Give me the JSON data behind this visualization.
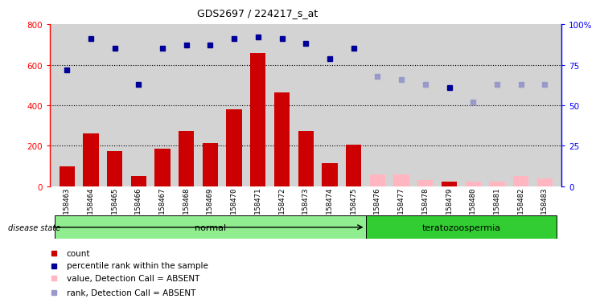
{
  "title": "GDS2697 / 224217_s_at",
  "samples": [
    "GSM158463",
    "GSM158464",
    "GSM158465",
    "GSM158466",
    "GSM158467",
    "GSM158468",
    "GSM158469",
    "GSM158470",
    "GSM158471",
    "GSM158472",
    "GSM158473",
    "GSM158474",
    "GSM158475",
    "GSM158476",
    "GSM158477",
    "GSM158478",
    "GSM158479",
    "GSM158480",
    "GSM158481",
    "GSM158482",
    "GSM158483"
  ],
  "count_values": [
    100,
    260,
    175,
    50,
    185,
    275,
    215,
    380,
    660,
    465,
    275,
    115,
    205,
    null,
    null,
    null,
    25,
    null,
    null,
    null,
    null
  ],
  "count_absent": [
    null,
    null,
    null,
    null,
    null,
    null,
    null,
    null,
    null,
    null,
    null,
    null,
    null,
    60,
    60,
    30,
    null,
    25,
    25,
    50,
    40
  ],
  "rank_values_pct": [
    72,
    91,
    85,
    63,
    85,
    87,
    87,
    91,
    92,
    91,
    88,
    79,
    85,
    null,
    null,
    null,
    61,
    null,
    null,
    null,
    null
  ],
  "rank_absent_pct": [
    null,
    null,
    null,
    null,
    null,
    null,
    null,
    null,
    null,
    null,
    null,
    null,
    null,
    68,
    66,
    63,
    null,
    52,
    63,
    63,
    63
  ],
  "groups": [
    {
      "label": "normal",
      "start": 0,
      "end": 13,
      "color": "#90EE90"
    },
    {
      "label": "teratozoospermia",
      "start": 13,
      "end": 21,
      "color": "#32CD32"
    }
  ],
  "disease_state_label": "disease state",
  "bar_color_red": "#CC0000",
  "bar_color_pink": "#FFB6C1",
  "dot_color_blue": "#000099",
  "dot_color_light_blue": "#9999CC",
  "ylim_left": [
    0,
    800
  ],
  "ylim_right": [
    0,
    100
  ],
  "yticks_left": [
    0,
    200,
    400,
    600,
    800
  ],
  "yticks_right": [
    0,
    25,
    50,
    75,
    100
  ],
  "ytick_labels_left": [
    "0",
    "200",
    "400",
    "600",
    "800"
  ],
  "ytick_labels_right": [
    "0",
    "25",
    "50",
    "75",
    "100%"
  ],
  "hlines": [
    200,
    400,
    600
  ],
  "bg_color": "#D3D3D3",
  "legend_items": [
    {
      "label": "count",
      "color": "#CC0000"
    },
    {
      "label": "percentile rank within the sample",
      "color": "#000099"
    },
    {
      "label": "value, Detection Call = ABSENT",
      "color": "#FFB6C1"
    },
    {
      "label": "rank, Detection Call = ABSENT",
      "color": "#9999CC"
    }
  ]
}
